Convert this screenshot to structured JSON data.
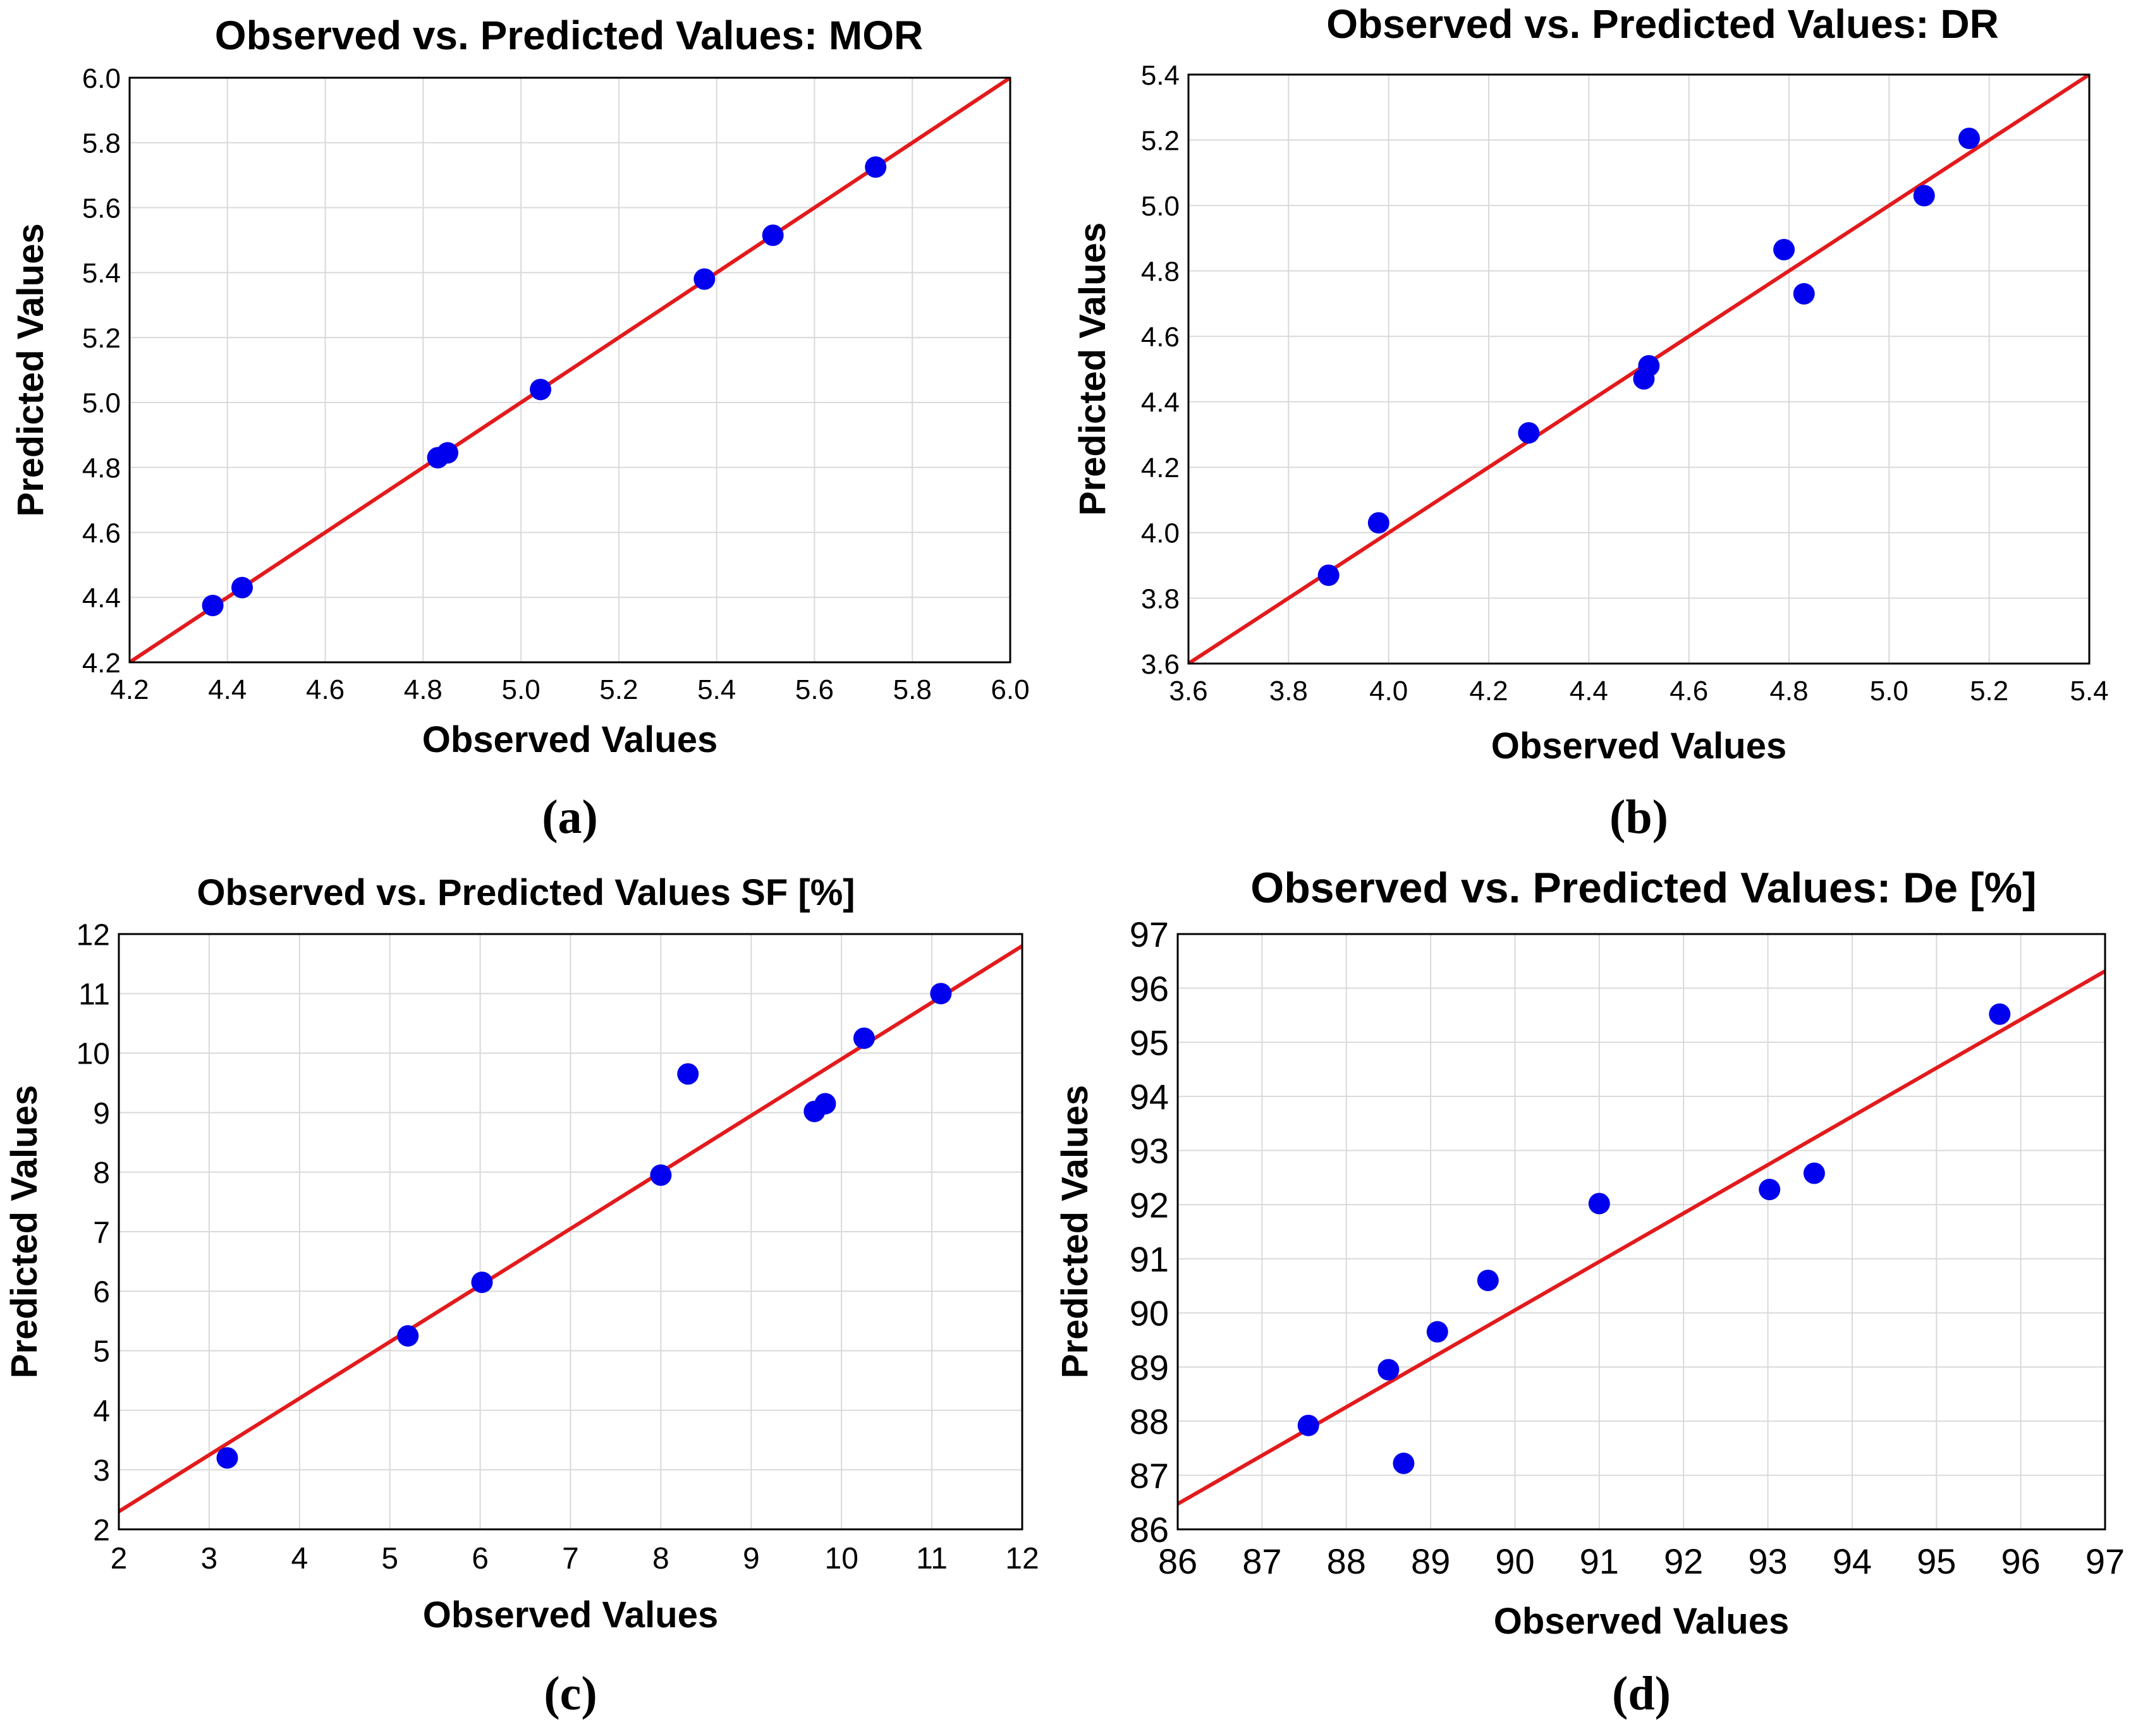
{
  "chart_data": [
    {
      "panel_label": "(a)",
      "type": "scatter",
      "title": "Observed vs. Predicted Values: MOR",
      "xlabel": "Observed Values",
      "ylabel": "Predicted Values",
      "xlim": [
        4.2,
        6.0
      ],
      "ylim": [
        4.2,
        6.0
      ],
      "xticks": [
        "4.2",
        "4.4",
        "4.6",
        "4.8",
        "5.0",
        "5.2",
        "5.4",
        "5.6",
        "5.8",
        "6.0"
      ],
      "yticks": [
        "4.2",
        "4.4",
        "4.6",
        "4.8",
        "5.0",
        "5.2",
        "5.4",
        "5.6",
        "5.8",
        "6.0"
      ],
      "fit_line": {
        "slope": 1.0,
        "intercept": 0.0
      },
      "points": [
        {
          "x": 4.37,
          "y": 4.375
        },
        {
          "x": 4.43,
          "y": 4.43
        },
        {
          "x": 4.83,
          "y": 4.83
        },
        {
          "x": 4.85,
          "y": 4.845
        },
        {
          "x": 5.04,
          "y": 5.04
        },
        {
          "x": 5.375,
          "y": 5.38
        },
        {
          "x": 5.515,
          "y": 5.515
        },
        {
          "x": 5.725,
          "y": 5.725
        }
      ]
    },
    {
      "panel_label": "(b)",
      "type": "scatter",
      "title": "Observed vs. Predicted Values: DR",
      "xlabel": "Observed Values",
      "ylabel": "Predicted Values",
      "xlim": [
        3.6,
        5.4
      ],
      "ylim": [
        3.6,
        5.4
      ],
      "xticks": [
        "3.6",
        "3.8",
        "4.0",
        "4.2",
        "4.4",
        "4.6",
        "4.8",
        "5.0",
        "5.2",
        "5.4"
      ],
      "yticks": [
        "3.6",
        "3.8",
        "4.0",
        "4.2",
        "4.4",
        "4.6",
        "4.8",
        "5.0",
        "5.2",
        "5.4"
      ],
      "fit_line": {
        "slope": 1.0,
        "intercept": 0.0
      },
      "points": [
        {
          "x": 3.88,
          "y": 3.87
        },
        {
          "x": 3.98,
          "y": 4.03
        },
        {
          "x": 4.28,
          "y": 4.305
        },
        {
          "x": 4.51,
          "y": 4.47
        },
        {
          "x": 4.52,
          "y": 4.51
        },
        {
          "x": 4.79,
          "y": 4.865
        },
        {
          "x": 4.83,
          "y": 4.73
        },
        {
          "x": 5.07,
          "y": 5.03
        },
        {
          "x": 5.16,
          "y": 5.205
        }
      ]
    },
    {
      "panel_label": "(c)",
      "type": "scatter",
      "title": "Observed vs. Predicted Values SF [%]",
      "xlabel": "Observed Values",
      "ylabel": "Predicted Values",
      "xlim": [
        2,
        12
      ],
      "ylim": [
        2,
        12
      ],
      "xticks": [
        "2",
        "3",
        "4",
        "5",
        "6",
        "7",
        "8",
        "9",
        "10",
        "11",
        "12"
      ],
      "yticks": [
        "2",
        "3",
        "4",
        "5",
        "6",
        "7",
        "8",
        "9",
        "10",
        "11",
        "12"
      ],
      "fit_line": {
        "slope": 0.95,
        "intercept": 0.4
      },
      "points": [
        {
          "x": 3.2,
          "y": 3.2
        },
        {
          "x": 5.2,
          "y": 5.25
        },
        {
          "x": 6.02,
          "y": 6.15
        },
        {
          "x": 8.0,
          "y": 7.95
        },
        {
          "x": 8.3,
          "y": 9.65
        },
        {
          "x": 9.7,
          "y": 9.02
        },
        {
          "x": 9.82,
          "y": 9.15
        },
        {
          "x": 10.25,
          "y": 10.25
        },
        {
          "x": 11.1,
          "y": 11.0
        }
      ]
    },
    {
      "panel_label": "(d)",
      "type": "scatter",
      "title": "Observed vs. Predicted Values: De [%]",
      "xlabel": "Observed Values",
      "ylabel": "Predicted Values",
      "xlim": [
        86,
        97
      ],
      "ylim": [
        86,
        97
      ],
      "xticks": [
        "86",
        "87",
        "88",
        "89",
        "90",
        "91",
        "92",
        "93",
        "94",
        "95",
        "96",
        "97"
      ],
      "yticks": [
        "86",
        "87",
        "88",
        "89",
        "90",
        "91",
        "92",
        "93",
        "94",
        "95",
        "96",
        "97"
      ],
      "fit_line": {
        "slope": 0.895,
        "intercept": 9.5
      },
      "points": [
        {
          "x": 87.55,
          "y": 87.92
        },
        {
          "x": 88.5,
          "y": 88.95
        },
        {
          "x": 88.68,
          "y": 87.22
        },
        {
          "x": 89.08,
          "y": 89.65
        },
        {
          "x": 89.68,
          "y": 90.6
        },
        {
          "x": 91.0,
          "y": 92.02
        },
        {
          "x": 93.02,
          "y": 92.28
        },
        {
          "x": 93.55,
          "y": 92.58
        },
        {
          "x": 95.75,
          "y": 95.52
        }
      ]
    }
  ]
}
